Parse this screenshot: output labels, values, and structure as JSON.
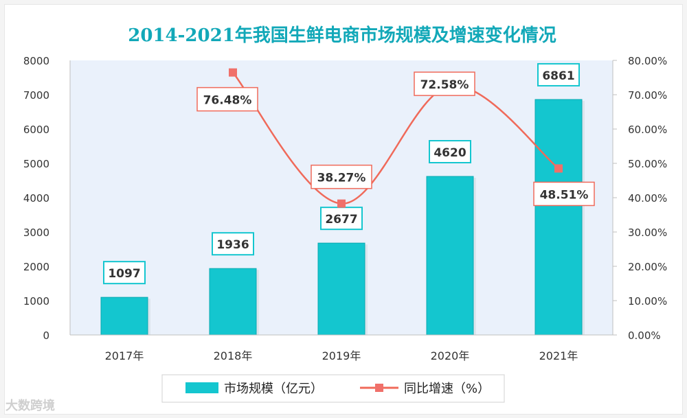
{
  "colors": {
    "bar": "#14c6cf",
    "bar_border": "#0aa9b2",
    "line": "#f06a5a",
    "marker": "#f0706a",
    "title": "#12a8b8",
    "plot_bg": "#eaf1fb"
  },
  "watermark": "大数跨境",
  "chart_data": {
    "type": "bar",
    "title": "2014-2021年我国生鲜电商市场规模及增速变化情况",
    "categories": [
      "2017年",
      "2018年",
      "2019年",
      "2020年",
      "2021年"
    ],
    "series": [
      {
        "name": "市场规模（亿元）",
        "type": "bar",
        "axis": "left",
        "values": [
          1097,
          1936,
          2677,
          4620,
          6861
        ],
        "labels": [
          "1097",
          "1936",
          "2677",
          "4620",
          "6861"
        ]
      },
      {
        "name": "同比增速（%）",
        "type": "line",
        "axis": "right",
        "values": [
          null,
          76.48,
          38.27,
          72.58,
          48.51
        ],
        "labels": [
          "",
          "76.48%",
          "38.27%",
          "72.58%",
          "48.51%"
        ]
      }
    ],
    "yleft": {
      "min": 0,
      "max": 8000,
      "ticks": [
        "0",
        "1000",
        "2000",
        "3000",
        "4000",
        "5000",
        "6000",
        "7000",
        "8000"
      ]
    },
    "yright": {
      "min": 0,
      "max": 80,
      "ticks": [
        "0.00%",
        "10.00%",
        "20.00%",
        "30.00%",
        "40.00%",
        "50.00%",
        "60.00%",
        "70.00%",
        "80.00%"
      ]
    },
    "legend": {
      "position": "bottom",
      "items": [
        "市场规模（亿元）",
        "同比增速（%）"
      ]
    }
  }
}
